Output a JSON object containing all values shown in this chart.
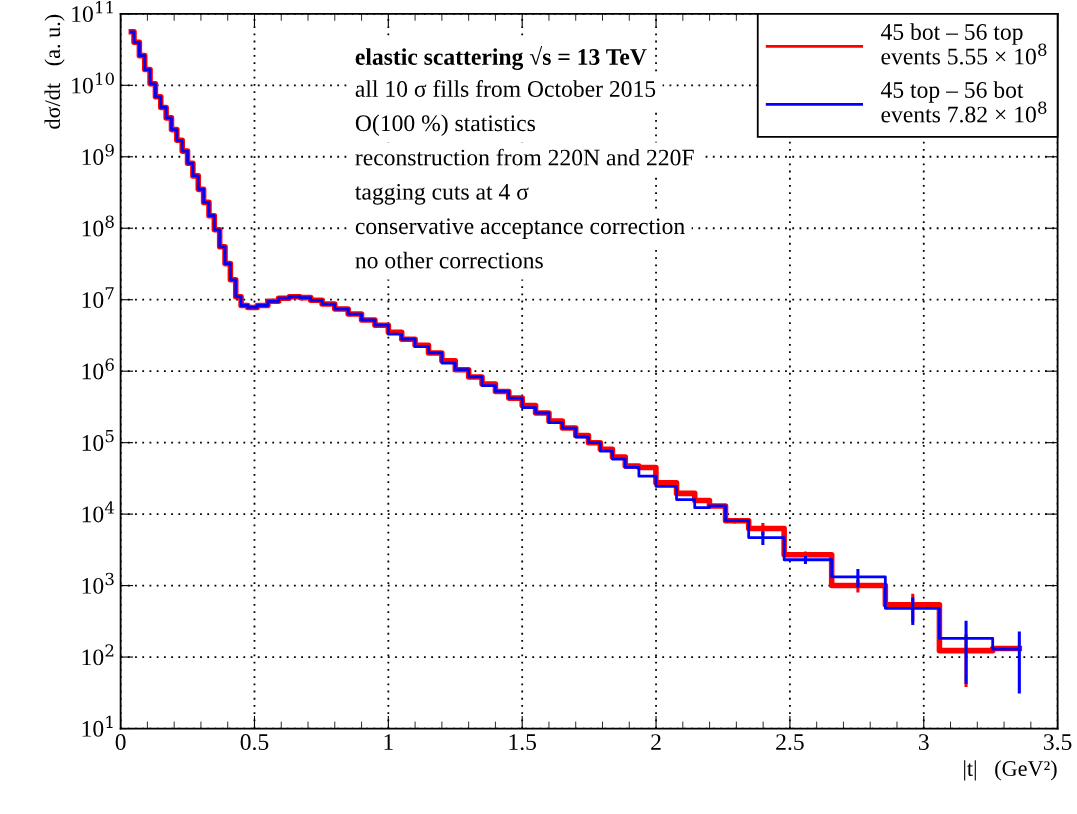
{
  "chart_data": {
    "type": "step",
    "xlabel": "|t|   (GeV²)",
    "ylabel": "dσ/dt   (a. u.)",
    "x": [
      0.04,
      0.06,
      0.08,
      0.1,
      0.12,
      0.14,
      0.16,
      0.18,
      0.2,
      0.22,
      0.24,
      0.26,
      0.28,
      0.3,
      0.32,
      0.34,
      0.36,
      0.38,
      0.4,
      0.42,
      0.44,
      0.46,
      0.49,
      0.53,
      0.57,
      0.61,
      0.65,
      0.69,
      0.73,
      0.775,
      0.825,
      0.875,
      0.925,
      0.975,
      1.025,
      1.075,
      1.125,
      1.175,
      1.225,
      1.275,
      1.325,
      1.375,
      1.425,
      1.475,
      1.525,
      1.575,
      1.625,
      1.675,
      1.725,
      1.77,
      1.814,
      1.86,
      1.91,
      1.962,
      2.037,
      2.116,
      2.173,
      2.226,
      2.293,
      2.399,
      2.558,
      2.754,
      2.959,
      3.158,
      3.357
    ],
    "series": [
      {
        "name": "45 bot – 56 top\nevents 5.55 × 10$^{8}$",
        "color": "#ff0000",
        "values": [
          56000000000.0,
          40000000000.0,
          26000000000.0,
          16600000000.0,
          10500000000.0,
          6900000000.0,
          4900000000.0,
          3500000000.0,
          2400000000.0,
          1700000000.0,
          1200000000.0,
          810000000.0,
          540000000.0,
          350000000.0,
          230000000.0,
          150000000.0,
          95000000.0,
          55000000.0,
          32000000.0,
          19000000.0,
          11000000.0,
          8300000.0,
          7800000.0,
          8300000.0,
          9500000.0,
          10500000.0,
          11000000.0,
          10700000.0,
          9800000.0,
          8700000.0,
          7400000.0,
          6300000.0,
          5200000.0,
          4400000.0,
          3500000.0,
          2800000.0,
          2300000.0,
          1800000.0,
          1400000.0,
          1050000.0,
          830000.0,
          660000.0,
          520000.0,
          420000.0,
          330000.0,
          260000.0,
          200000.0,
          160000.0,
          126000.0,
          100000.0,
          81000.0,
          63000.0,
          47000.0,
          45000.0,
          27500.0,
          19500.0,
          15500.0,
          13000.0,
          8100,
          6300,
          2700,
          1000,
          540,
          123,
          132
        ],
        "errors": [
          null,
          null,
          null,
          null,
          null,
          null,
          null,
          null,
          null,
          null,
          null,
          null,
          null,
          null,
          null,
          null,
          null,
          null,
          null,
          null,
          null,
          null,
          null,
          null,
          null,
          null,
          null,
          null,
          null,
          null,
          null,
          null,
          null,
          null,
          null,
          null,
          null,
          null,
          null,
          null,
          null,
          null,
          null,
          null,
          null,
          null,
          null,
          null,
          null,
          null,
          null,
          null,
          null,
          null,
          null,
          null,
          null,
          null,
          700,
          1200,
          300,
          200,
          230,
          85,
          null
        ]
      },
      {
        "name": "45 top – 56 bot\nevents 7.82 × 10$^{8}$",
        "color": "#0000ff",
        "values": [
          56000000000.0,
          40000000000.0,
          26000000000.0,
          16600000000.0,
          10500000000.0,
          6900000000.0,
          4900000000.0,
          3500000000.0,
          2400000000.0,
          1700000000.0,
          1200000000.0,
          810000000.0,
          540000000.0,
          350000000.0,
          230000000.0,
          150000000.0,
          95000000.0,
          55000000.0,
          32000000.0,
          19000000.0,
          11000000.0,
          8300000.0,
          7800000.0,
          8300000.0,
          9500000.0,
          10500000.0,
          11000000.0,
          10700000.0,
          9800000.0,
          8700000.0,
          7400000.0,
          6300000.0,
          5200000.0,
          4400000.0,
          3300000.0,
          2800000.0,
          2200000.0,
          1800000.0,
          1300000.0,
          1050000.0,
          830000.0,
          630000.0,
          520000.0,
          420000.0,
          310000.0,
          260000.0,
          190000.0,
          160000.0,
          120000.0,
          100000.0,
          76000.0,
          59000.0,
          45000.0,
          34000.0,
          24500.0,
          16000.0,
          12300.0,
          13000.0,
          8100,
          4700,
          2300,
          1320,
          480,
          182,
          129
        ],
        "errors": [
          null,
          null,
          null,
          null,
          null,
          null,
          null,
          null,
          null,
          null,
          null,
          null,
          null,
          null,
          null,
          null,
          null,
          null,
          null,
          null,
          null,
          null,
          null,
          null,
          null,
          null,
          null,
          null,
          null,
          null,
          null,
          null,
          null,
          null,
          null,
          null,
          null,
          null,
          null,
          null,
          null,
          null,
          null,
          null,
          null,
          null,
          null,
          null,
          null,
          null,
          null,
          null,
          null,
          null,
          null,
          null,
          null,
          null,
          null,
          1000,
          300,
          380,
          200,
          140,
          98
        ]
      }
    ],
    "annotations": [
      "elastic scattering √s = 13 TeV",
      "all 10 σ fills from October 2015",
      "O(100 %) statistics",
      "reconstruction from 220N and 220F",
      "tagging cuts at 4 σ",
      "conservative acceptance correction",
      "no other corrections"
    ],
    "xlim": [
      0,
      3.5
    ],
    "xticks": [
      0,
      0.5,
      1,
      1.5,
      2,
      2.5,
      3,
      3.5
    ],
    "ylim": [
      10,
      100000000000.0
    ],
    "yticks": [
      {
        "value": 10,
        "label": "10$^{1}$"
      },
      {
        "value": 100,
        "label": "10$^{2}$"
      },
      {
        "value": 1000,
        "label": "10$^{3}$"
      },
      {
        "value": 10000,
        "label": "10$^{4}$"
      },
      {
        "value": 100000,
        "label": "10$^{5}$"
      },
      {
        "value": 1000000,
        "label": "10$^{6}$"
      },
      {
        "value": 10000000,
        "label": "10$^{7}$"
      },
      {
        "value": 100000000,
        "label": "10$^{8}$"
      },
      {
        "value": 1000000000,
        "label": "10$^{9}$"
      },
      {
        "value": 10000000000,
        "label": "10$^{10}$"
      },
      {
        "value": 100000000000,
        "label": "10$^{11}$"
      }
    ],
    "log": "y",
    "grid": true,
    "legend": "top right",
    "line_style": "solid"
  }
}
